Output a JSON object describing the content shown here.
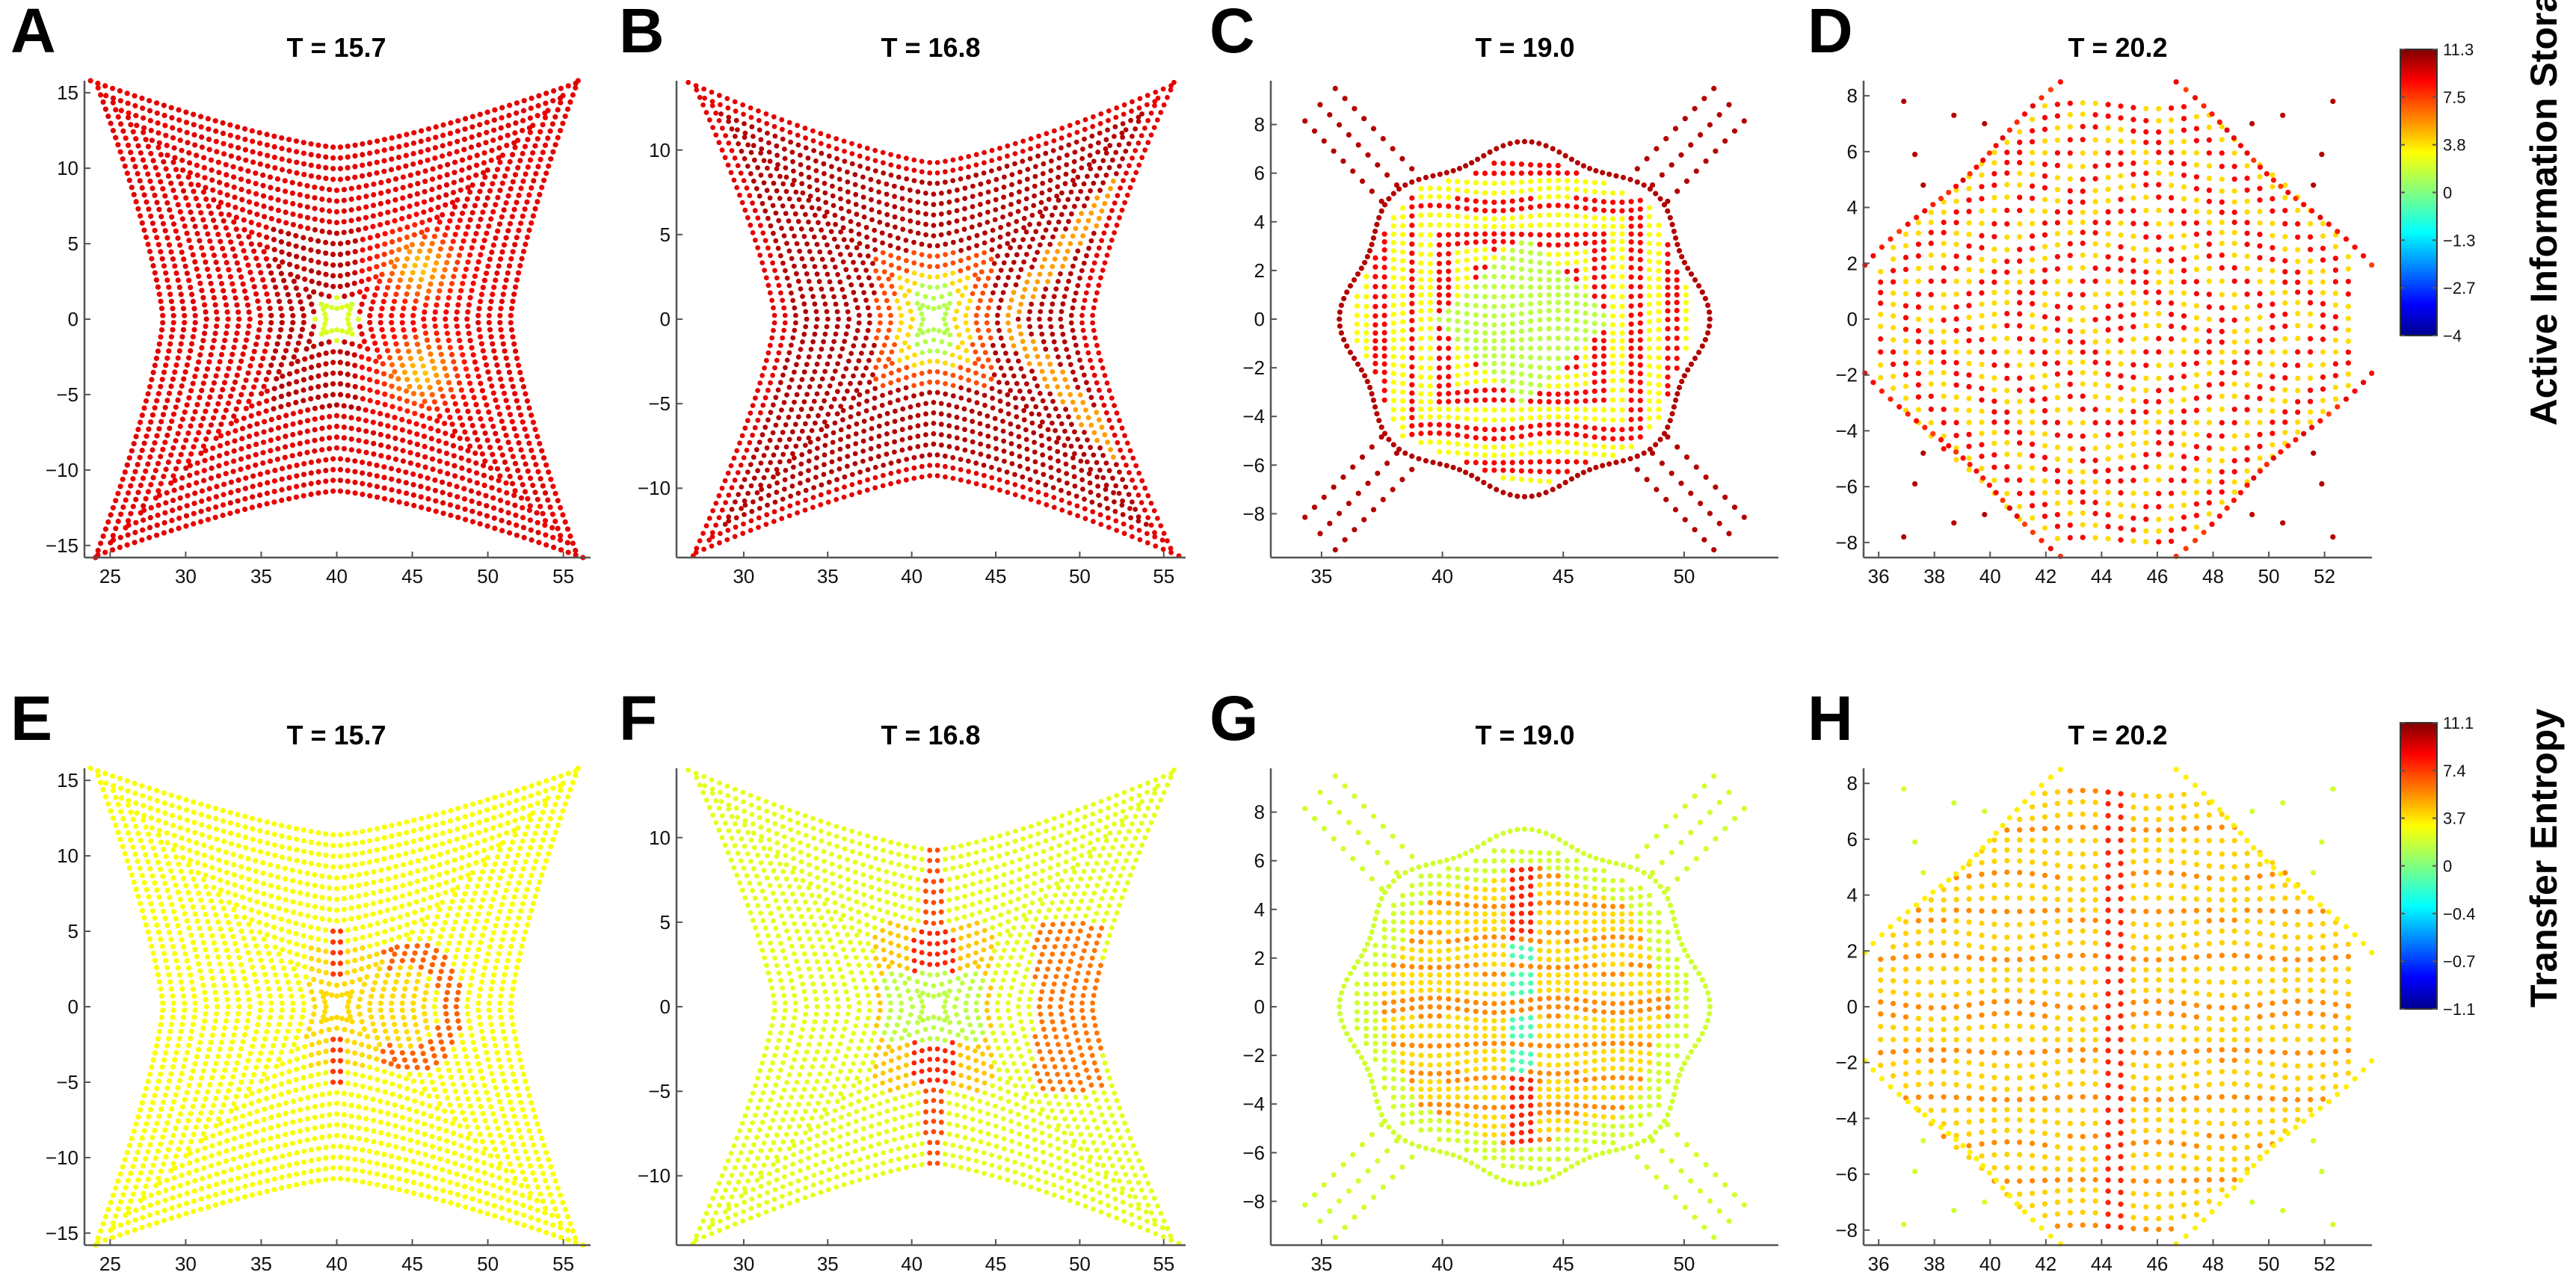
{
  "chart_data": {
    "type": "scatter",
    "layout": "2 rows x 4 columns of scatter panels with one colorbar per row",
    "rows": [
      {
        "measure": "Active Information Storage",
        "colorbar": {
          "title": "Active Information Storage",
          "min": -4,
          "max": 11.3,
          "ticks": [
            11.3,
            7.5,
            3.8,
            0,
            -1.3,
            -2.7,
            -4
          ],
          "tick_labels": [
            "11.3",
            "7.5",
            "3.8",
            "0",
            "−1.3",
            "−2.7",
            "−4"
          ],
          "colormap": "jet"
        },
        "panels": [
          {
            "letter": "A",
            "title": "T = 15.7",
            "shape": "x-star-wide",
            "field": "ais-early",
            "xlim": [
              23.3,
              56.8
            ],
            "ylim": [
              -15.8,
              15.8
            ],
            "xticks": [
              25,
              30,
              35,
              40,
              45,
              50,
              55
            ],
            "yticks": [
              -15,
              -10,
              -5,
              0,
              5,
              10,
              15
            ],
            "xtick_labels": [
              "25",
              "30",
              "35",
              "40",
              "45",
              "50",
              "55"
            ],
            "ytick_labels": [
              "−15",
              "−10",
              "−5",
              "0",
              "5",
              "10",
              "15"
            ],
            "center": [
              40,
              0
            ]
          },
          {
            "letter": "B",
            "title": "T = 16.8",
            "shape": "x-star",
            "field": "ais-mid",
            "xlim": [
              26,
              56.3
            ],
            "ylim": [
              -14.1,
              14.1
            ],
            "xticks": [
              30,
              35,
              40,
              45,
              50,
              55
            ],
            "yticks": [
              -10,
              -5,
              0,
              5,
              10
            ],
            "xtick_labels": [
              "30",
              "35",
              "40",
              "45",
              "50",
              "55"
            ],
            "ytick_labels": [
              "−10",
              "−5",
              "0",
              "5",
              "10"
            ],
            "center": [
              41.3,
              0
            ]
          },
          {
            "letter": "C",
            "title": "T = 19.0",
            "shape": "disc-with-arms",
            "field": "ais-late",
            "xlim": [
              32.9,
              53.9
            ],
            "ylim": [
              -9.8,
              9.8
            ],
            "xticks": [
              35,
              40,
              45,
              50
            ],
            "yticks": [
              -8,
              -6,
              -4,
              -2,
              0,
              2,
              4,
              6,
              8
            ],
            "xtick_labels": [
              "35",
              "40",
              "45",
              "50"
            ],
            "ytick_labels": [
              "−8",
              "−6",
              "−4",
              "−2",
              "0",
              "2",
              "4",
              "6",
              "8"
            ],
            "center": [
              43.4,
              0
            ]
          },
          {
            "letter": "D",
            "title": "T = 20.2",
            "shape": "disc-lobed",
            "field": "ais-final",
            "xlim": [
              35.46,
              53.7
            ],
            "ylim": [
              -8.54,
              8.54
            ],
            "xticks": [
              36,
              38,
              40,
              42,
              44,
              46,
              48,
              50,
              52
            ],
            "yticks": [
              -8,
              -6,
              -4,
              -2,
              0,
              2,
              4,
              6,
              8
            ],
            "xtick_labels": [
              "36",
              "38",
              "40",
              "42",
              "44",
              "46",
              "48",
              "50",
              "52"
            ],
            "ytick_labels": [
              "−8",
              "−6",
              "−4",
              "−2",
              "0",
              "2",
              "4",
              "6",
              "8"
            ],
            "center": [
              44.6,
              0
            ]
          }
        ]
      },
      {
        "measure": "Transfer Entropy",
        "colorbar": {
          "title": "Transfer Entropy",
          "min": -1.1,
          "max": 11.1,
          "ticks": [
            11.1,
            7.4,
            3.7,
            0,
            -0.4,
            -0.7,
            -1.1
          ],
          "tick_labels": [
            "11.1",
            "7.4",
            "3.7",
            "0",
            "−0.4",
            "−0.7",
            "−1.1"
          ],
          "colormap": "jet"
        },
        "panels": [
          {
            "letter": "E",
            "title": "T = 15.7",
            "shape": "x-star-wide",
            "field": "te-early",
            "xlim": [
              23.3,
              56.8
            ],
            "ylim": [
              -15.8,
              15.8
            ],
            "xticks": [
              25,
              30,
              35,
              40,
              45,
              50,
              55
            ],
            "yticks": [
              -15,
              -10,
              -5,
              0,
              5,
              10,
              15
            ],
            "xtick_labels": [
              "25",
              "30",
              "35",
              "40",
              "45",
              "50",
              "55"
            ],
            "ytick_labels": [
              "−15",
              "−10",
              "−5",
              "0",
              "5",
              "10",
              "15"
            ],
            "center": [
              40,
              0
            ]
          },
          {
            "letter": "F",
            "title": "T = 16.8",
            "shape": "x-star",
            "field": "te-mid",
            "xlim": [
              26,
              56.3
            ],
            "ylim": [
              -14.1,
              14.1
            ],
            "xticks": [
              30,
              35,
              40,
              45,
              50,
              55
            ],
            "yticks": [
              -10,
              -5,
              0,
              5,
              10
            ],
            "xtick_labels": [
              "30",
              "35",
              "40",
              "45",
              "50",
              "55"
            ],
            "ytick_labels": [
              "−10",
              "−5",
              "0",
              "5",
              "10"
            ],
            "center": [
              41.3,
              0
            ]
          },
          {
            "letter": "G",
            "title": "T = 19.0",
            "shape": "disc-with-arms",
            "field": "te-late",
            "xlim": [
              32.9,
              53.9
            ],
            "ylim": [
              -9.8,
              9.8
            ],
            "xticks": [
              35,
              40,
              45,
              50
            ],
            "yticks": [
              -8,
              -6,
              -4,
              -2,
              0,
              2,
              4,
              6,
              8
            ],
            "xtick_labels": [
              "35",
              "40",
              "45",
              "50"
            ],
            "ytick_labels": [
              "−8",
              "−6",
              "−4",
              "−2",
              "0",
              "2",
              "4",
              "6",
              "8"
            ],
            "center": [
              43.4,
              0
            ]
          },
          {
            "letter": "H",
            "title": "T = 20.2",
            "shape": "disc-lobed",
            "field": "te-final",
            "xlim": [
              35.46,
              53.7
            ],
            "ylim": [
              -8.54,
              8.54
            ],
            "xticks": [
              36,
              38,
              40,
              42,
              44,
              46,
              48,
              50,
              52
            ],
            "yticks": [
              -8,
              -6,
              -4,
              -2,
              0,
              2,
              4,
              6,
              8
            ],
            "xtick_labels": [
              "36",
              "38",
              "40",
              "42",
              "44",
              "46",
              "48",
              "50",
              "52"
            ],
            "ytick_labels": [
              "−8",
              "−6",
              "−4",
              "−2",
              "0",
              "2",
              "4",
              "6",
              "8"
            ],
            "center": [
              44.6,
              0
            ]
          }
        ]
      }
    ]
  }
}
